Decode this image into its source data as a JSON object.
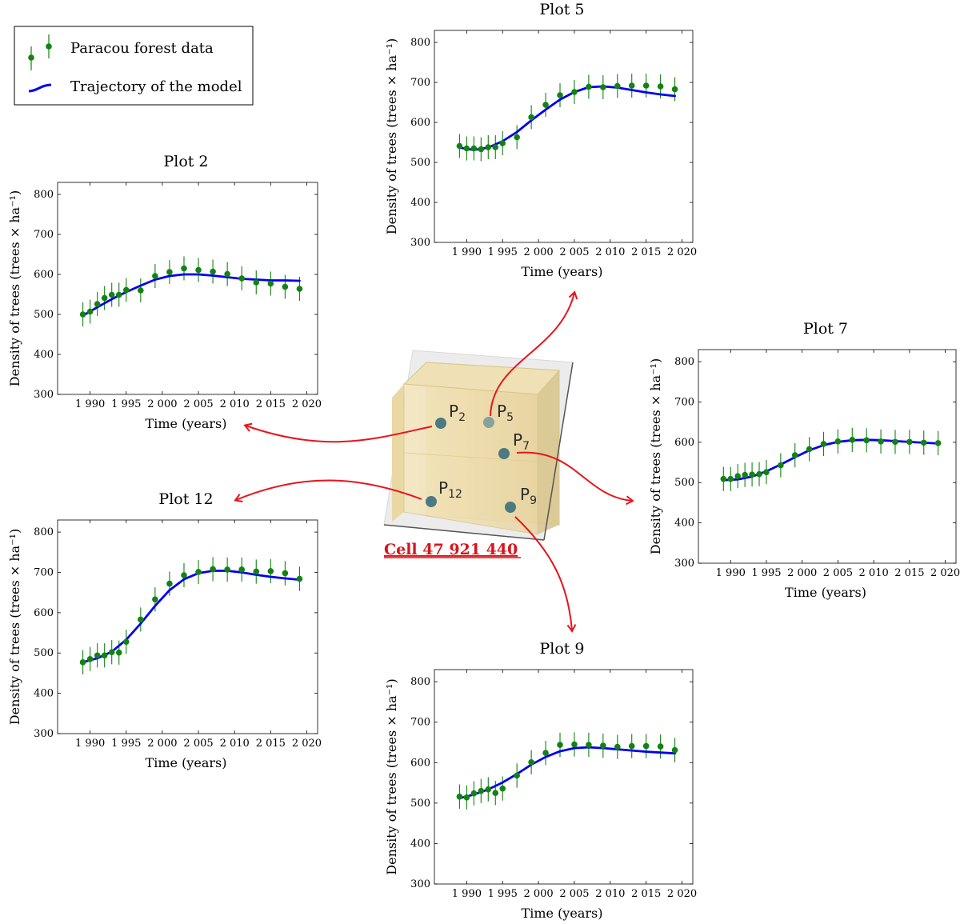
{
  "legend": {
    "data_label": "Paracou forest data",
    "model_label": "Trajectory of the model"
  },
  "cell_label": "Cell 47 921 440",
  "points": {
    "p2": {
      "main": "P",
      "sub": "2"
    },
    "p5": {
      "main": "P",
      "sub": "5"
    },
    "p7": {
      "main": "P",
      "sub": "7"
    },
    "p9": {
      "main": "P",
      "sub": "9"
    },
    "p12": {
      "main": "P",
      "sub": "12"
    }
  },
  "colors": {
    "data": "#138213",
    "model": "#0000ee",
    "arrow": "#e8141c",
    "point": "#4b7a83"
  },
  "chart_data": [
    {
      "id": "plot2",
      "type": "scatter",
      "title": "Plot 2",
      "xlabel": "Time (years)",
      "ylabel": "Density of trees (trees × ha⁻¹)",
      "xlim": [
        1985.5,
        2021.5
      ],
      "ylim": [
        300,
        830
      ],
      "xticks": [
        1990,
        1995,
        2000,
        2005,
        2010,
        2015,
        2020
      ],
      "xtick_labels": [
        "1 990",
        "1 995",
        "2 000",
        "2 005",
        "2 010",
        "2 015",
        "2 020"
      ],
      "yticks": [
        300,
        400,
        500,
        600,
        700,
        800
      ],
      "series": [
        {
          "name": "Paracou forest data",
          "x": [
            1989,
            1990,
            1991,
            1992,
            1993,
            1994,
            1995,
            1997,
            1999,
            2001,
            2003,
            2005,
            2007,
            2009,
            2011,
            2013,
            2015,
            2017,
            2019
          ],
          "y": [
            500,
            507,
            526,
            541,
            549,
            549,
            561,
            560,
            596,
            606,
            615,
            611,
            607,
            601,
            590,
            580,
            577,
            569,
            564
          ],
          "err": 30
        },
        {
          "name": "Trajectory of the model",
          "x": [
            1989,
            1991,
            1993,
            1995,
            1997,
            1999,
            2001,
            2003,
            2005,
            2007,
            2009,
            2011,
            2013,
            2015,
            2017,
            2019
          ],
          "y": [
            497,
            518,
            538,
            556,
            572,
            587,
            596,
            600,
            600,
            597,
            593,
            589,
            587,
            585,
            585,
            584
          ]
        }
      ]
    },
    {
      "id": "plot5",
      "type": "scatter",
      "title": "Plot 5",
      "xlabel": "Time (years)",
      "ylabel": "Density of trees (trees × ha⁻¹)",
      "xlim": [
        1985.5,
        2021.5
      ],
      "ylim": [
        300,
        830
      ],
      "xticks": [
        1990,
        1995,
        2000,
        2005,
        2010,
        2015,
        2020
      ],
      "xtick_labels": [
        "1 990",
        "1 995",
        "2 000",
        "2 005",
        "2 010",
        "2 015",
        "2 020"
      ],
      "yticks": [
        300,
        400,
        500,
        600,
        700,
        800
      ],
      "series": [
        {
          "name": "Paracou forest data",
          "x": [
            1989,
            1990,
            1991,
            1992,
            1993,
            1994,
            1995,
            1997,
            1999,
            2001,
            2003,
            2005,
            2007,
            2009,
            2011,
            2013,
            2015,
            2017,
            2019
          ],
          "y": [
            541,
            535,
            535,
            533,
            538,
            538,
            548,
            563,
            613,
            644,
            668,
            676,
            689,
            688,
            691,
            692,
            692,
            690,
            683
          ],
          "err": 30
        },
        {
          "name": "Trajectory of the model",
          "x": [
            1989,
            1991,
            1993,
            1995,
            1997,
            1999,
            2001,
            2003,
            2005,
            2007,
            2009,
            2011,
            2013,
            2015,
            2017,
            2019
          ],
          "y": [
            537,
            531,
            537,
            553,
            576,
            605,
            632,
            657,
            676,
            688,
            690,
            687,
            681,
            675,
            670,
            666
          ]
        }
      ]
    },
    {
      "id": "plot7",
      "type": "scatter",
      "title": "Plot 7",
      "xlabel": "Time (years)",
      "ylabel": "Density of trees (trees × ha⁻¹)",
      "xlim": [
        1985.5,
        2021.5
      ],
      "ylim": [
        300,
        830
      ],
      "xticks": [
        1990,
        1995,
        2000,
        2005,
        2010,
        2015,
        2020
      ],
      "xtick_labels": [
        "1 990",
        "1 995",
        "2 000",
        "2 005",
        "2 010",
        "2 015",
        "2 020"
      ],
      "yticks": [
        300,
        400,
        500,
        600,
        700,
        800
      ],
      "series": [
        {
          "name": "Paracou forest data",
          "x": [
            1989,
            1990,
            1991,
            1992,
            1993,
            1994,
            1995,
            1997,
            1999,
            2001,
            2003,
            2005,
            2007,
            2009,
            2011,
            2013,
            2015,
            2017,
            2019
          ],
          "y": [
            509,
            509,
            516,
            519,
            520,
            521,
            526,
            543,
            568,
            583,
            596,
            602,
            606,
            605,
            602,
            601,
            601,
            599,
            598
          ],
          "err": 30
        },
        {
          "name": "Trajectory of the model",
          "x": [
            1989,
            1991,
            1993,
            1995,
            1997,
            1999,
            2001,
            2003,
            2005,
            2007,
            2009,
            2011,
            2013,
            2015,
            2017,
            2019
          ],
          "y": [
            506,
            508,
            515,
            528,
            545,
            563,
            580,
            593,
            601,
            605,
            606,
            605,
            603,
            601,
            599,
            597
          ]
        }
      ]
    },
    {
      "id": "plot12",
      "type": "scatter",
      "title": "Plot 12",
      "xlabel": "Time (years)",
      "ylabel": "Density of trees (trees × ha⁻¹)",
      "xlim": [
        1985.5,
        2021.5
      ],
      "ylim": [
        300,
        830
      ],
      "xticks": [
        1990,
        1995,
        2000,
        2005,
        2010,
        2015,
        2020
      ],
      "xtick_labels": [
        "1 990",
        "1 995",
        "2 000",
        "2 005",
        "2 010",
        "2 015",
        "2 020"
      ],
      "yticks": [
        300,
        400,
        500,
        600,
        700,
        800
      ],
      "series": [
        {
          "name": "Paracou forest data",
          "x": [
            1989,
            1990,
            1991,
            1992,
            1993,
            1994,
            1995,
            1997,
            1999,
            2001,
            2003,
            2005,
            2007,
            2009,
            2011,
            2013,
            2015,
            2017,
            2019
          ],
          "y": [
            477,
            485,
            494,
            494,
            502,
            501,
            528,
            583,
            633,
            672,
            693,
            701,
            708,
            707,
            707,
            702,
            703,
            698,
            684
          ],
          "err": 30
        },
        {
          "name": "Trajectory of the model",
          "x": [
            1989,
            1991,
            1993,
            1995,
            1997,
            1999,
            2001,
            2003,
            2005,
            2007,
            2009,
            2011,
            2013,
            2015,
            2017,
            2019
          ],
          "y": [
            477,
            487,
            503,
            533,
            573,
            617,
            656,
            683,
            698,
            704,
            704,
            700,
            694,
            689,
            685,
            682
          ]
        }
      ]
    },
    {
      "id": "plot9",
      "type": "scatter",
      "title": "Plot 9",
      "xlabel": "Time (years)",
      "ylabel": "Density of trees (trees × ha⁻¹)",
      "xlim": [
        1985.5,
        2021.5
      ],
      "ylim": [
        300,
        830
      ],
      "xticks": [
        1990,
        1995,
        2000,
        2005,
        2010,
        2015,
        2020
      ],
      "xtick_labels": [
        "1 990",
        "1 995",
        "2 000",
        "2 005",
        "2 010",
        "2 015",
        "2 020"
      ],
      "yticks": [
        300,
        400,
        500,
        600,
        700,
        800
      ],
      "series": [
        {
          "name": "Paracou forest data",
          "x": [
            1989,
            1990,
            1991,
            1992,
            1993,
            1994,
            1995,
            1997,
            1999,
            2001,
            2003,
            2005,
            2007,
            2009,
            2011,
            2013,
            2015,
            2017,
            2019
          ],
          "y": [
            516,
            514,
            524,
            530,
            534,
            525,
            536,
            568,
            601,
            624,
            644,
            645,
            644,
            642,
            639,
            641,
            641,
            640,
            631
          ],
          "err": 30
        },
        {
          "name": "Trajectory of the model",
          "x": [
            1989,
            1991,
            1993,
            1995,
            1997,
            1999,
            2001,
            2003,
            2005,
            2007,
            2009,
            2011,
            2013,
            2015,
            2017,
            2019
          ],
          "y": [
            512,
            521,
            534,
            551,
            572,
            595,
            614,
            628,
            636,
            638,
            636,
            633,
            630,
            627,
            625,
            623
          ]
        }
      ]
    }
  ]
}
